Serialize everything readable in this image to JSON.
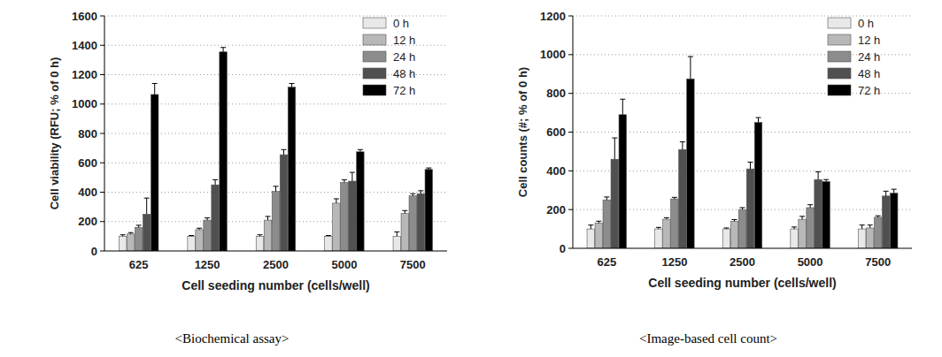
{
  "chart_data": [
    {
      "type": "bar",
      "y_label": "Cell viability (RFU; % of 0 h)",
      "x_label": "Cell seeding number (cells/well)",
      "caption": "<Biochemical assay>",
      "categories": [
        "625",
        "1250",
        "2500",
        "5000",
        "7500"
      ],
      "series": [
        {
          "name": "0 h",
          "color": "#e8e8e8",
          "values": [
            100,
            100,
            100,
            100,
            100
          ],
          "errors": [
            10,
            5,
            10,
            5,
            30
          ]
        },
        {
          "name": "12 h",
          "color": "#b8b8b8",
          "values": [
            115,
            145,
            210,
            325,
            255
          ],
          "errors": [
            10,
            10,
            25,
            30,
            20
          ]
        },
        {
          "name": "24 h",
          "color": "#8c8c8c",
          "values": [
            160,
            210,
            405,
            465,
            375
          ],
          "errors": [
            15,
            15,
            35,
            20,
            15
          ]
        },
        {
          "name": "48 h",
          "color": "#505050",
          "values": [
            250,
            450,
            655,
            475,
            390
          ],
          "errors": [
            110,
            35,
            35,
            60,
            20
          ]
        },
        {
          "name": "72 h",
          "color": "#000000",
          "values": [
            1065,
            1355,
            1115,
            675,
            555
          ],
          "errors": [
            75,
            30,
            25,
            15,
            10
          ]
        }
      ],
      "ylim": [
        0,
        1600
      ],
      "yticks": [
        0,
        200,
        400,
        600,
        800,
        1000,
        1200,
        1400,
        1600
      ],
      "grid": true,
      "legend": "top-right"
    },
    {
      "type": "bar",
      "y_label": "Cell counts (#; % of 0 h)",
      "x_label": "Cell seeding number (cells/well)",
      "caption": "<Image-based cell count>",
      "categories": [
        "625",
        "1250",
        "2500",
        "5000",
        "7500"
      ],
      "series": [
        {
          "name": "0 h",
          "color": "#e8e8e8",
          "values": [
            100,
            100,
            100,
            100,
            100
          ],
          "errors": [
            20,
            8,
            5,
            10,
            20
          ]
        },
        {
          "name": "12 h",
          "color": "#b8b8b8",
          "values": [
            130,
            150,
            140,
            150,
            105
          ],
          "errors": [
            10,
            8,
            8,
            15,
            15
          ]
        },
        {
          "name": "24 h",
          "color": "#8c8c8c",
          "values": [
            250,
            255,
            200,
            210,
            160
          ],
          "errors": [
            15,
            8,
            10,
            15,
            8
          ]
        },
        {
          "name": "48 h",
          "color": "#505050",
          "values": [
            460,
            510,
            410,
            355,
            270
          ],
          "errors": [
            110,
            40,
            35,
            40,
            25
          ]
        },
        {
          "name": "72 h",
          "color": "#000000",
          "values": [
            690,
            875,
            650,
            345,
            285
          ],
          "errors": [
            80,
            115,
            25,
            10,
            20
          ]
        }
      ],
      "ylim": [
        0,
        1200
      ],
      "yticks": [
        0,
        200,
        400,
        600,
        800,
        1000,
        1200
      ],
      "grid": true,
      "legend": "top-right"
    }
  ]
}
